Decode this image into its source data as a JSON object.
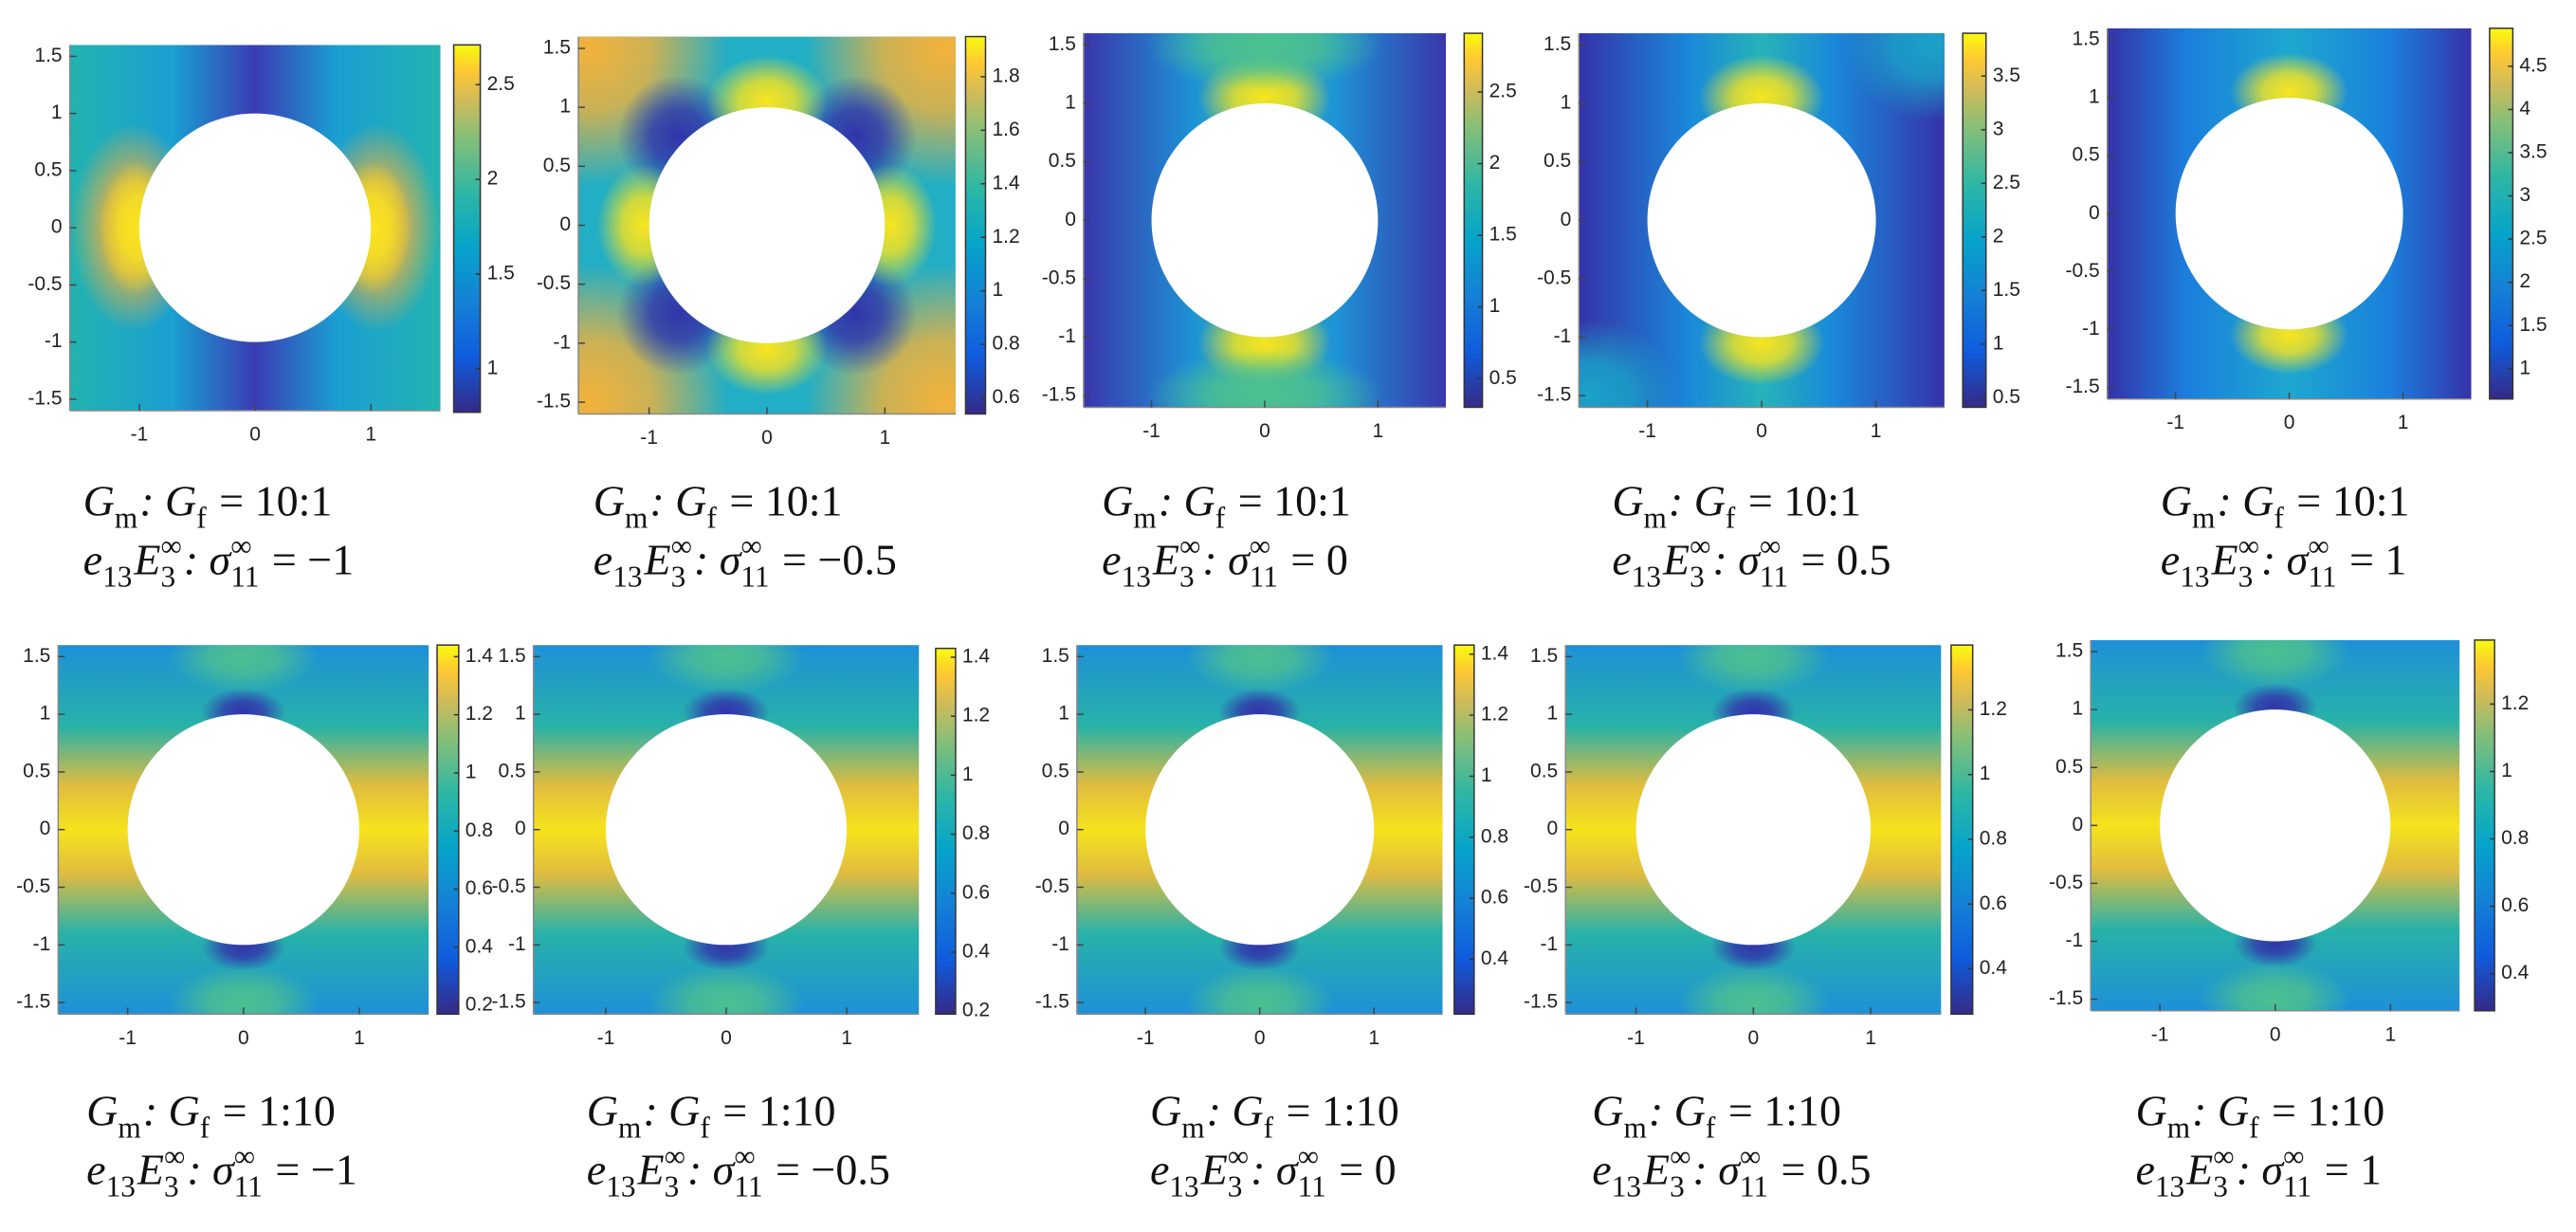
{
  "chart_data": [
    {
      "type": "heatmap",
      "colormap": "parula",
      "xlim": [
        -1.6,
        1.6
      ],
      "ylim": [
        -1.6,
        1.6
      ],
      "xticks": [
        -1,
        0,
        1
      ],
      "yticks": [
        -1.5,
        -1,
        -0.5,
        0,
        0.5,
        1,
        1.5
      ],
      "clim": [
        0.77,
        2.71
      ],
      "cticks": [
        1,
        1.5,
        2,
        2.5
      ],
      "caption": [
        [
          {
            "t": "G",
            "sub": "m"
          },
          {
            "t": ": G",
            "sub": "f"
          },
          {
            "t": " = 10:1"
          }
        ],
        [
          {
            "t": "e",
            "sub": "13"
          },
          {
            "t": "E",
            "sub": "3",
            "sup": "∞"
          },
          {
            "t": ": σ",
            "sub": "11",
            "sup": "∞"
          },
          {
            "t": " = −1"
          }
        ]
      ]
    },
    {
      "type": "heatmap",
      "colormap": "parula",
      "xlim": [
        -1.6,
        1.6
      ],
      "ylim": [
        -1.6,
        1.6
      ],
      "xticks": [
        -1,
        0,
        1
      ],
      "yticks": [
        -1.5,
        -1,
        -0.5,
        0,
        0.5,
        1,
        1.5
      ],
      "clim": [
        0.54,
        1.95
      ],
      "cticks": [
        0.6,
        0.8,
        1,
        1.2,
        1.4,
        1.6,
        1.8
      ],
      "caption": [
        [
          {
            "t": "G",
            "sub": "m"
          },
          {
            "t": ": G",
            "sub": "f"
          },
          {
            "t": " = 10:1"
          }
        ],
        [
          {
            "t": "e",
            "sub": "13"
          },
          {
            "t": "E",
            "sub": "3",
            "sup": "∞"
          },
          {
            "t": ": σ",
            "sub": "11",
            "sup": "∞"
          },
          {
            "t": " = −0.5"
          }
        ]
      ]
    },
    {
      "type": "heatmap",
      "colormap": "parula",
      "xlim": [
        -1.6,
        1.6
      ],
      "ylim": [
        -1.6,
        1.6
      ],
      "xticks": [
        -1,
        0,
        1
      ],
      "yticks": [
        -1.5,
        -1,
        -0.5,
        0,
        0.5,
        1,
        1.5
      ],
      "clim": [
        0.3,
        2.91
      ],
      "cticks": [
        0.5,
        1,
        1.5,
        2,
        2.5
      ],
      "caption": [
        [
          {
            "t": "G",
            "sub": "m"
          },
          {
            "t": ": G",
            "sub": "f"
          },
          {
            "t": " = 10:1"
          }
        ],
        [
          {
            "t": "e",
            "sub": "13"
          },
          {
            "t": "E",
            "sub": "3",
            "sup": "∞"
          },
          {
            "t": ": σ",
            "sub": "11",
            "sup": "∞"
          },
          {
            "t": " = 0"
          }
        ]
      ]
    },
    {
      "type": "heatmap",
      "colormap": "parula",
      "xlim": [
        -1.6,
        1.6
      ],
      "ylim": [
        -1.6,
        1.6
      ],
      "xticks": [
        -1,
        0,
        1
      ],
      "yticks": [
        -1.5,
        -1,
        -0.5,
        0,
        0.5,
        1,
        1.5
      ],
      "clim": [
        0.41,
        3.9
      ],
      "cticks": [
        0.5,
        1,
        1.5,
        2,
        2.5,
        3,
        3.5
      ],
      "caption": [
        [
          {
            "t": "G",
            "sub": "m"
          },
          {
            "t": ": G",
            "sub": "f"
          },
          {
            "t": " = 10:1"
          }
        ],
        [
          {
            "t": "e",
            "sub": "13"
          },
          {
            "t": "E",
            "sub": "3",
            "sup": "∞"
          },
          {
            "t": ": σ",
            "sub": "11",
            "sup": "∞"
          },
          {
            "t": " = 0.5"
          }
        ]
      ]
    },
    {
      "type": "heatmap",
      "colormap": "parula",
      "xlim": [
        -1.6,
        1.6
      ],
      "ylim": [
        -1.6,
        1.6
      ],
      "xticks": [
        -1,
        0,
        1
      ],
      "yticks": [
        -1.5,
        -1,
        -0.5,
        0,
        0.5,
        1,
        1.5
      ],
      "clim": [
        0.65,
        4.94
      ],
      "cticks": [
        1,
        1.5,
        2,
        2.5,
        3,
        3.5,
        4,
        4.5
      ],
      "caption": [
        [
          {
            "t": "G",
            "sub": "m"
          },
          {
            "t": ": G",
            "sub": "f"
          },
          {
            "t": " = 10:1"
          }
        ],
        [
          {
            "t": "e",
            "sub": "13"
          },
          {
            "t": "E",
            "sub": "3",
            "sup": "∞"
          },
          {
            "t": ": σ",
            "sub": "11",
            "sup": "∞"
          },
          {
            "t": " = 1"
          }
        ]
      ]
    },
    {
      "type": "heatmap",
      "colormap": "parula",
      "xlim": [
        -1.6,
        1.6
      ],
      "ylim": [
        -1.6,
        1.6
      ],
      "xticks": [
        -1,
        0,
        1
      ],
      "yticks": [
        -1.5,
        -1,
        -0.5,
        0,
        0.5,
        1,
        1.5
      ],
      "clim": [
        0.17,
        1.44
      ],
      "cticks": [
        0.2,
        0.4,
        0.6,
        0.8,
        1,
        1.2,
        1.4
      ],
      "caption": [
        [
          {
            "t": "G",
            "sub": "m"
          },
          {
            "t": ": G",
            "sub": "f"
          },
          {
            "t": " = 1:10"
          }
        ],
        [
          {
            "t": "e",
            "sub": "13"
          },
          {
            "t": "E",
            "sub": "3",
            "sup": "∞"
          },
          {
            "t": ": σ",
            "sub": "11",
            "sup": "∞"
          },
          {
            "t": " = −1"
          }
        ]
      ]
    },
    {
      "type": "heatmap",
      "colormap": "parula",
      "xlim": [
        -1.6,
        1.6
      ],
      "ylim": [
        -1.6,
        1.6
      ],
      "xticks": [
        -1,
        0,
        1
      ],
      "yticks": [
        -1.5,
        -1,
        -0.5,
        0,
        0.5,
        1,
        1.5
      ],
      "clim": [
        0.19,
        1.43
      ],
      "cticks": [
        0.2,
        0.4,
        0.6,
        0.8,
        1,
        1.2,
        1.4
      ],
      "caption": [
        [
          {
            "t": "G",
            "sub": "m"
          },
          {
            "t": ": G",
            "sub": "f"
          },
          {
            "t": " = 1:10"
          }
        ],
        [
          {
            "t": "e",
            "sub": "13"
          },
          {
            "t": "E",
            "sub": "3",
            "sup": "∞"
          },
          {
            "t": ": σ",
            "sub": "11",
            "sup": "∞"
          },
          {
            "t": " = −0.5"
          }
        ]
      ]
    },
    {
      "type": "heatmap",
      "colormap": "parula",
      "xlim": [
        -1.6,
        1.6
      ],
      "ylim": [
        -1.6,
        1.6
      ],
      "xticks": [
        -1,
        0,
        1
      ],
      "yticks": [
        -1.5,
        -1,
        -0.5,
        0,
        0.5,
        1,
        1.5
      ],
      "clim": [
        0.22,
        1.43
      ],
      "cticks": [
        0.4,
        0.6,
        0.8,
        1,
        1.2,
        1.4
      ],
      "caption": [
        [
          {
            "t": "G",
            "sub": "m"
          },
          {
            "t": ": G",
            "sub": "f"
          },
          {
            "t": " = 1:10"
          }
        ],
        [
          {
            "t": "e",
            "sub": "13"
          },
          {
            "t": "E",
            "sub": "3",
            "sup": "∞"
          },
          {
            "t": ": σ",
            "sub": "11",
            "sup": "∞"
          },
          {
            "t": " = 0"
          }
        ]
      ]
    },
    {
      "type": "heatmap",
      "colormap": "parula",
      "xlim": [
        -1.6,
        1.6
      ],
      "ylim": [
        -1.6,
        1.6
      ],
      "xticks": [
        -1,
        0,
        1
      ],
      "yticks": [
        -1.5,
        -1,
        -0.5,
        0,
        0.5,
        1,
        1.5
      ],
      "clim": [
        0.26,
        1.4
      ],
      "cticks": [
        0.4,
        0.6,
        0.8,
        1,
        1.2
      ],
      "caption": [
        [
          {
            "t": "G",
            "sub": "m"
          },
          {
            "t": ": G",
            "sub": "f"
          },
          {
            "t": " = 1:10"
          }
        ],
        [
          {
            "t": "e",
            "sub": "13"
          },
          {
            "t": "E",
            "sub": "3",
            "sup": "∞"
          },
          {
            "t": ": σ",
            "sub": "11",
            "sup": "∞"
          },
          {
            "t": " = 0.5"
          }
        ]
      ]
    },
    {
      "type": "heatmap",
      "colormap": "parula",
      "xlim": [
        -1.6,
        1.6
      ],
      "ylim": [
        -1.6,
        1.6
      ],
      "xticks": [
        -1,
        0,
        1
      ],
      "yticks": [
        -1.5,
        -1,
        -0.5,
        0,
        0.5,
        1,
        1.5
      ],
      "clim": [
        0.29,
        1.39
      ],
      "cticks": [
        0.4,
        0.6,
        0.8,
        1,
        1.2
      ],
      "caption": [
        [
          {
            "t": "G",
            "sub": "m"
          },
          {
            "t": ": G",
            "sub": "f"
          },
          {
            "t": " = 1:10"
          }
        ],
        [
          {
            "t": "e",
            "sub": "13"
          },
          {
            "t": "E",
            "sub": "3",
            "sup": "∞"
          },
          {
            "t": ": σ",
            "sub": "11",
            "sup": "∞"
          },
          {
            "t": " = 1"
          }
        ]
      ]
    }
  ]
}
